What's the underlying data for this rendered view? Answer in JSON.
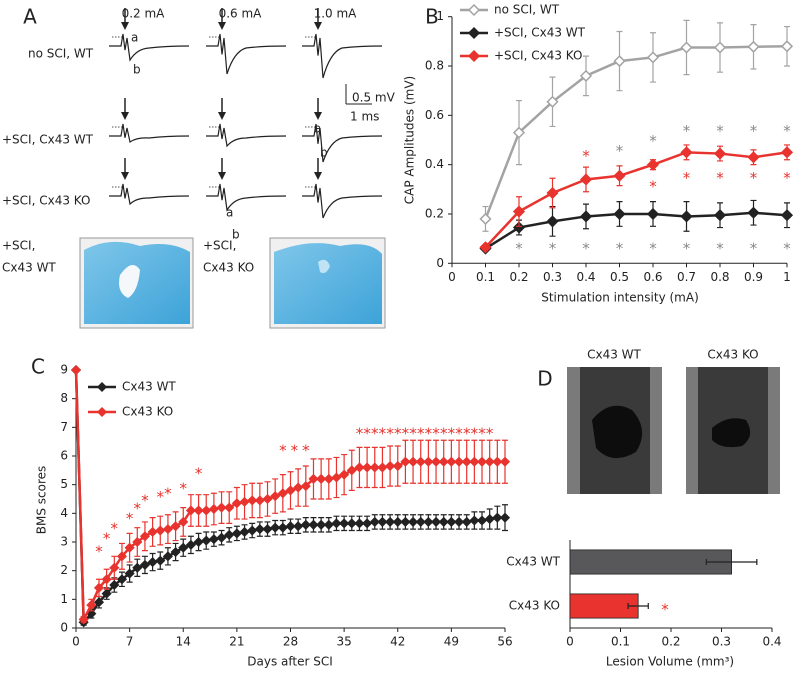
{
  "panel_a": {
    "label": "A",
    "intensities": [
      "0.2 mA",
      "0.6 mA",
      "1.0 mA"
    ],
    "rows": [
      "no SCI, WT",
      "+SCI, Cx43 WT",
      "+SCI, Cx43 KO"
    ],
    "scale_voltage": "0.5 mV",
    "scale_time": "1 ms",
    "peaks": [
      "a",
      "b"
    ],
    "histology": [
      [
        "+SCI,",
        "Cx43 WT"
      ],
      [
        "+SCI,",
        "Cx43 KO"
      ]
    ]
  },
  "panel_d_images": {
    "labels": [
      "Cx43 WT",
      "Cx43 KO"
    ]
  },
  "chart_data": [
    {
      "panel": "B",
      "type": "line",
      "xlabel": "Stimulation intensity (mA)",
      "ylabel": "CAP Amplitudes (mV)",
      "x": [
        0.1,
        0.2,
        0.3,
        0.4,
        0.5,
        0.6,
        0.7,
        0.8,
        0.9,
        1
      ],
      "xlim": [
        0,
        1
      ],
      "xticks": [
        0,
        0.1,
        0.2,
        0.3,
        0.4,
        0.5,
        0.6,
        0.7,
        0.8,
        0.9,
        1
      ],
      "ylim": [
        0,
        1
      ],
      "yticks": [
        0,
        0.2,
        0.4,
        0.6,
        0.8,
        1
      ],
      "legend": "upper left",
      "series": [
        {
          "name": "no SCI, WT",
          "color": "#a3a3a3",
          "marker": "open diamond",
          "values": [
            0.18,
            0.53,
            0.655,
            0.76,
            0.82,
            0.835,
            0.875,
            0.875,
            0.878,
            0.88
          ],
          "errors": [
            0.05,
            0.13,
            0.1,
            0.08,
            0.12,
            0.1,
            0.11,
            0.1,
            0.09,
            0.08
          ]
        },
        {
          "name": "+SCI, Cx43 WT",
          "color": "#222222",
          "marker": "diamond",
          "values": [
            0.06,
            0.145,
            0.17,
            0.19,
            0.2,
            0.2,
            0.19,
            0.195,
            0.205,
            0.195
          ],
          "errors": [
            0.01,
            0.03,
            0.06,
            0.05,
            0.05,
            0.05,
            0.06,
            0.05,
            0.05,
            0.05
          ]
        },
        {
          "name": "+SCI, Cx43 KO",
          "color": "#e8332e",
          "marker": "diamond",
          "values": [
            0.065,
            0.21,
            0.285,
            0.34,
            0.355,
            0.4,
            0.45,
            0.445,
            0.43,
            0.45
          ],
          "errors": [
            0.01,
            0.06,
            0.06,
            0.05,
            0.04,
            0.02,
            0.03,
            0.03,
            0.03,
            0.03
          ]
        }
      ],
      "annotations": [
        {
          "text": "*",
          "color": "#8a8a8a",
          "x": [
            0.5,
            0.6,
            0.7,
            0.8,
            0.9,
            1
          ],
          "y": [
            0.47,
            0.51,
            0.55,
            0.55,
            0.55,
            0.55
          ]
        },
        {
          "text": "*",
          "color": "#e8332e",
          "x": [
            0.4,
            0.6,
            0.7,
            0.8,
            0.9,
            1
          ],
          "y": [
            0.45,
            0.325,
            0.36,
            0.36,
            0.36,
            0.36
          ]
        },
        {
          "text": "*",
          "color": "#8a8a8a",
          "x": [
            0.2,
            0.3,
            0.4,
            0.5,
            0.6,
            0.7,
            0.8,
            0.9,
            1
          ],
          "y": [
            0.075,
            0.075,
            0.075,
            0.075,
            0.075,
            0.075,
            0.075,
            0.075,
            0.075
          ]
        }
      ]
    },
    {
      "panel": "C",
      "type": "line",
      "xlabel": "Days after SCI",
      "ylabel": "BMS scores",
      "x": [
        0,
        1,
        2,
        3,
        4,
        5,
        6,
        7,
        8,
        9,
        10,
        11,
        12,
        13,
        14,
        15,
        16,
        17,
        18,
        19,
        20,
        21,
        22,
        23,
        24,
        25,
        26,
        27,
        28,
        29,
        30,
        31,
        32,
        33,
        34,
        35,
        36,
        37,
        38,
        39,
        40,
        41,
        42,
        43,
        44,
        45,
        46,
        47,
        48,
        49,
        50,
        51,
        52,
        53,
        54,
        55,
        56
      ],
      "xlim": [
        0,
        56
      ],
      "xticks": [
        0,
        7,
        14,
        21,
        28,
        35,
        42,
        49,
        56
      ],
      "ylim": [
        0,
        9
      ],
      "yticks": [
        0,
        1,
        2,
        3,
        4,
        5,
        6,
        7,
        8,
        9
      ],
      "legend": "upper left",
      "series": [
        {
          "name": "Cx43 WT",
          "color": "#222222",
          "marker": "diamond",
          "values": [
            9,
            0.2,
            0.5,
            0.9,
            1.2,
            1.5,
            1.7,
            1.9,
            2.1,
            2.2,
            2.3,
            2.35,
            2.5,
            2.65,
            2.8,
            2.9,
            3.0,
            3.05,
            3.1,
            3.15,
            3.25,
            3.3,
            3.35,
            3.4,
            3.45,
            3.45,
            3.5,
            3.5,
            3.55,
            3.55,
            3.6,
            3.6,
            3.6,
            3.6,
            3.65,
            3.65,
            3.65,
            3.65,
            3.65,
            3.7,
            3.7,
            3.7,
            3.7,
            3.7,
            3.7,
            3.7,
            3.7,
            3.7,
            3.7,
            3.7,
            3.7,
            3.7,
            3.75,
            3.75,
            3.8,
            3.85,
            3.85
          ],
          "errors": [
            0,
            0.1,
            0.15,
            0.2,
            0.2,
            0.25,
            0.25,
            0.3,
            0.3,
            0.3,
            0.3,
            0.3,
            0.3,
            0.3,
            0.3,
            0.3,
            0.3,
            0.3,
            0.25,
            0.25,
            0.25,
            0.25,
            0.25,
            0.25,
            0.25,
            0.25,
            0.25,
            0.25,
            0.25,
            0.25,
            0.25,
            0.25,
            0.25,
            0.25,
            0.25,
            0.25,
            0.25,
            0.25,
            0.25,
            0.25,
            0.25,
            0.25,
            0.25,
            0.25,
            0.25,
            0.25,
            0.25,
            0.25,
            0.25,
            0.25,
            0.25,
            0.25,
            0.3,
            0.3,
            0.35,
            0.4,
            0.45
          ]
        },
        {
          "name": "Cx43 KO",
          "color": "#e8332e",
          "marker": "diamond",
          "values": [
            9,
            0.3,
            0.8,
            1.4,
            1.7,
            2.1,
            2.5,
            2.8,
            3.0,
            3.2,
            3.35,
            3.4,
            3.45,
            3.55,
            3.7,
            4.1,
            4.1,
            4.1,
            4.15,
            4.2,
            4.2,
            4.35,
            4.4,
            4.45,
            4.45,
            4.5,
            4.6,
            4.7,
            4.8,
            4.9,
            4.95,
            5.2,
            5.2,
            5.2,
            5.25,
            5.35,
            5.5,
            5.6,
            5.6,
            5.6,
            5.6,
            5.65,
            5.65,
            5.8,
            5.8,
            5.8,
            5.8,
            5.8,
            5.8,
            5.8,
            5.8,
            5.8,
            5.8,
            5.8,
            5.8,
            5.8,
            5.8
          ],
          "errors": [
            0,
            0.1,
            0.2,
            0.3,
            0.35,
            0.4,
            0.45,
            0.5,
            0.5,
            0.5,
            0.5,
            0.5,
            0.5,
            0.5,
            0.5,
            0.55,
            0.55,
            0.55,
            0.55,
            0.55,
            0.55,
            0.55,
            0.6,
            0.6,
            0.6,
            0.6,
            0.6,
            0.65,
            0.65,
            0.65,
            0.7,
            0.7,
            0.7,
            0.7,
            0.7,
            0.7,
            0.7,
            0.7,
            0.7,
            0.7,
            0.7,
            0.7,
            0.7,
            0.75,
            0.75,
            0.75,
            0.75,
            0.75,
            0.75,
            0.75,
            0.75,
            0.75,
            0.75,
            0.75,
            0.75,
            0.75,
            0.75
          ]
        }
      ],
      "annotations": [
        {
          "text": "*",
          "color": "#e8332e",
          "x": [
            3,
            4,
            5,
            7,
            8,
            9,
            11,
            12,
            14,
            16,
            27,
            28.5,
            30,
            37,
            38,
            39,
            40,
            41,
            42,
            43,
            44,
            45,
            46,
            47,
            48,
            49,
            50,
            51,
            52,
            53,
            54
          ],
          "y": [
            2.79,
            3.24,
            3.59,
            3.94,
            4.29,
            4.57,
            4.7,
            4.81,
            4.99,
            5.51,
            6.31,
            6.31,
            6.31,
            6.91,
            6.91,
            6.91,
            6.91,
            6.91,
            6.91,
            6.91,
            6.91,
            6.91,
            6.91,
            6.91,
            6.91,
            6.91,
            6.91,
            6.91,
            6.91,
            6.91,
            6.91
          ]
        }
      ]
    },
    {
      "panel": "D",
      "type": "bar",
      "orientation": "horizontal",
      "xlabel": "Lesion Volume (mm³)",
      "categories": [
        "Cx43 WT",
        "Cx43 KO"
      ],
      "values": [
        0.32,
        0.135
      ],
      "errors": [
        0.05,
        0.02
      ],
      "colors": [
        "#58585a",
        "#e8332e"
      ],
      "xlim": [
        0,
        0.4
      ],
      "xticks": [
        0,
        0.1,
        0.2,
        0.3,
        0.4
      ],
      "annotations": [
        {
          "text": "*",
          "color": "#e8332e",
          "x": [
            0.188
          ],
          "y": [
            "Cx43 KO"
          ]
        }
      ]
    }
  ]
}
